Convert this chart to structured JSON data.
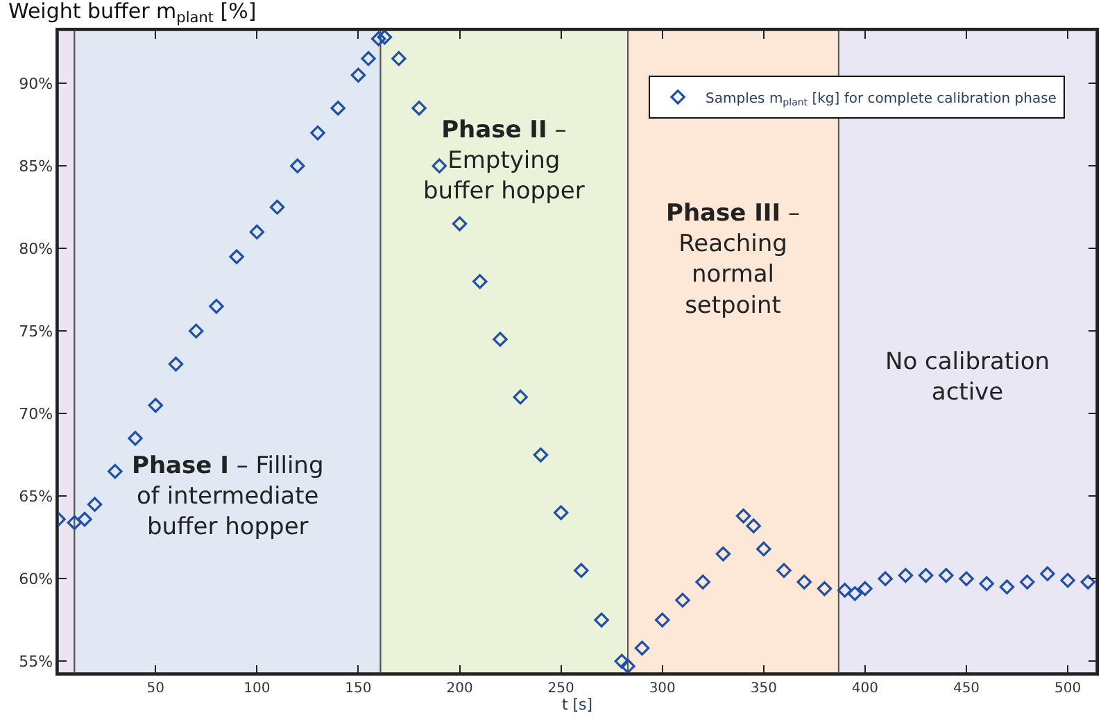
{
  "chart_data": {
    "type": "scatter",
    "ylabel": "Weight buffer m$_{plant}$ [%]",
    "xlabel": "t [s]",
    "xlim": [
      2,
      514
    ],
    "ylim": [
      54.3,
      93.2
    ],
    "xticks": [
      50,
      100,
      150,
      200,
      250,
      300,
      350,
      400,
      450,
      500
    ],
    "yticks": [
      {
        "value": 55,
        "label": "55%"
      },
      {
        "value": 60,
        "label": "60%"
      },
      {
        "value": 65,
        "label": "65%"
      },
      {
        "value": 70,
        "label": "70%"
      },
      {
        "value": 75,
        "label": "75%"
      },
      {
        "value": 80,
        "label": "80%"
      },
      {
        "value": 85,
        "label": "85%"
      },
      {
        "value": 90,
        "label": "90%"
      }
    ],
    "grid": false,
    "legend": "top right",
    "marker": "diamond",
    "bands": [
      {
        "axis": "x",
        "from": 2,
        "to": 10,
        "color": "#ece4f0"
      },
      {
        "axis": "x",
        "from": 10,
        "to": 161,
        "label": "Phase I – Filling\nof intermediate\nbuffer hopper",
        "color": "#dfe8f3"
      },
      {
        "axis": "x",
        "from": 161,
        "to": 283,
        "label": "Phase II –\nEmptying\nbuffer hopper",
        "color": "#eaf2da"
      },
      {
        "axis": "x",
        "from": 283,
        "to": 387,
        "label": "Phase III –\nReaching\nnormal\nsetpoint",
        "color": "#fde7d6"
      },
      {
        "axis": "x",
        "from": 387,
        "to": 514,
        "label": "No calibration\nactive",
        "color": "#e9e7f3"
      }
    ],
    "series": [
      {
        "name": "Samples m$_{plant}$ [kg] for complete calibration phase",
        "color": "#1f4fa8",
        "x": [
          2,
          10,
          15,
          20,
          30,
          40,
          50,
          60,
          70,
          80,
          90,
          100,
          110,
          120,
          130,
          140,
          150,
          155,
          160,
          163,
          170,
          180,
          190,
          200,
          210,
          220,
          230,
          240,
          250,
          260,
          270,
          280,
          283,
          290,
          300,
          310,
          320,
          330,
          340,
          345,
          350,
          360,
          370,
          380,
          390,
          395,
          400,
          410,
          420,
          430,
          440,
          450,
          460,
          470,
          480,
          490,
          500,
          510
        ],
        "values": [
          63.6,
          63.4,
          63.6,
          64.5,
          66.5,
          68.5,
          70.5,
          73,
          75,
          76.5,
          79.5,
          81,
          82.5,
          85,
          87,
          88.5,
          90.5,
          91.5,
          92.7,
          92.8,
          91.5,
          88.5,
          85,
          81.5,
          78,
          74.5,
          71,
          67.5,
          64,
          60.5,
          57.5,
          55,
          54.7,
          55.8,
          57.5,
          58.7,
          59.8,
          61.5,
          63.8,
          63.2,
          61.8,
          60.5,
          59.8,
          59.4,
          59.3,
          59.1,
          59.4,
          60,
          60.2,
          60.2,
          60.2,
          60,
          59.7,
          59.5,
          59.8,
          60.3,
          59.9,
          59.8
        ]
      }
    ]
  }
}
